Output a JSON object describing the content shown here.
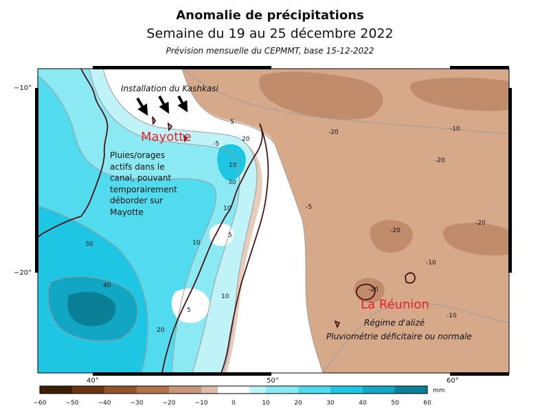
{
  "header": {
    "title": "Anomalie de précipitations",
    "subtitle": "Semaine du 19 au 25 décembre 2022",
    "source": "Prévision mensuelle du CEPMMT, base 15-12-2022"
  },
  "axes": {
    "lat_labels": [
      "−10°",
      "−20°"
    ],
    "lon_labels": [
      "40°",
      "50°",
      "60°"
    ]
  },
  "annotations": {
    "kashkasi": "Installation du Kashkasi",
    "mayotte": "Mayotte",
    "mayotte_note": [
      "Pluies/orages",
      "actifs dans le",
      "canal, pouvant",
      "temporairement",
      "déborder sur",
      "Mayotte"
    ],
    "reunion": "La Réunion",
    "reunion_note1": "Régime d'alizé",
    "reunion_note2": "Pluviométrie déficitaire ou normale",
    "label_color": "#e8202a"
  },
  "contour_labels": [
    "5",
    "-5",
    "20",
    "-20",
    "10",
    "30",
    "-10",
    "40",
    "-5",
    "10",
    "5",
    "-20",
    "-20",
    "-20",
    "10",
    "30",
    "20",
    "-10",
    "-10",
    "-20",
    "10",
    "5"
  ],
  "legend": {
    "ticks": [
      "−60",
      "−50",
      "−40",
      "−30",
      "−20",
      "−10",
      "0",
      "10",
      "20",
      "30",
      "40",
      "50",
      "60"
    ],
    "unit": "mm",
    "colors": [
      "#3e1e05",
      "#6b3510",
      "#93532a",
      "#b0714b",
      "#c8977a",
      "#dcbca8",
      "#ffffff",
      "#bff3f8",
      "#8ae9f3",
      "#52dbee",
      "#1fc6e3",
      "#10a6c4",
      "#0a7f96"
    ]
  }
}
